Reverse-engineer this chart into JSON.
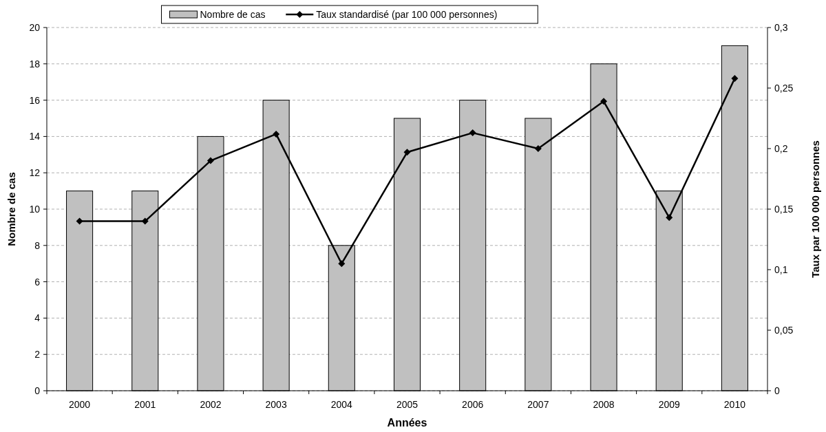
{
  "chart_data": {
    "type": "bar",
    "xlabel": "Années",
    "ylabel": "Nombre de cas",
    "y2label": "Taux par 100 000 personnes",
    "categories": [
      "2000",
      "2001",
      "2002",
      "2003",
      "2004",
      "2005",
      "2006",
      "2007",
      "2008",
      "2009",
      "2010"
    ],
    "series": [
      {
        "name": "Nombre de cas",
        "color": "#c0c0c0",
        "values": [
          11,
          11,
          14,
          16,
          8,
          15,
          16,
          15,
          18,
          11,
          19
        ]
      },
      {
        "name": "Taux standardisé (par 100 000 personnes)",
        "type": "line",
        "axis": "y2",
        "color": "#000000",
        "values": [
          0.14,
          0.14,
          0.19,
          0.212,
          0.105,
          0.197,
          0.213,
          0.2,
          0.239,
          0.143,
          0.258
        ]
      }
    ],
    "ylim": [
      0,
      20
    ],
    "yticks": [
      0,
      2,
      4,
      6,
      8,
      10,
      12,
      14,
      16,
      18,
      20
    ],
    "y2lim": [
      0,
      0.3
    ],
    "y2ticks": [
      0,
      {
        "value": 0.05,
        "label": "0,05"
      },
      {
        "value": 0.1,
        "label": "0,1"
      },
      {
        "value": 0.15,
        "label": "0,15"
      },
      {
        "value": 0.2,
        "label": "0,2"
      },
      {
        "value": 0.25,
        "label": "0,25"
      },
      {
        "value": 0.3,
        "label": "0,3"
      }
    ],
    "grid": "y",
    "legend": "top",
    "marker": "diamond",
    "line_style": "solid"
  }
}
